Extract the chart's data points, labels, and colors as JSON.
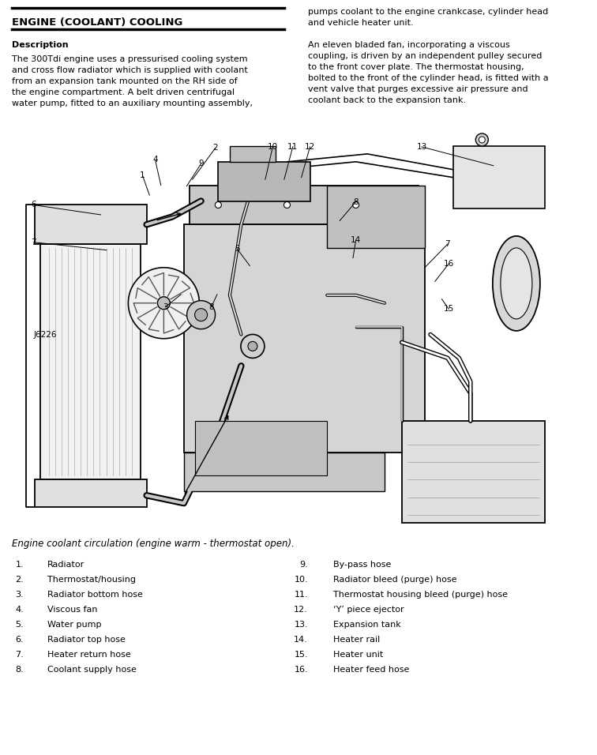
{
  "title": "ENGINE (COOLANT) COOLING",
  "description_header": "Description",
  "left_para1": "The 300Tdi engine uses a pressurised cooling system\nand cross flow radiator which is supplied with coolant\nfrom an expansion tank mounted on the RH side of\nthe engine compartment. A belt driven centrifugal\nwater pump, fitted to an auxiliary mounting assembly,",
  "right_para1": "pumps coolant to the engine crankcase, cylinder head\nand vehicle heater unit.",
  "right_para2": "An eleven bladed fan, incorporating a viscous\ncoupling, is driven by an independent pulley secured\nto the front cover plate. The thermostat housing,\nbolted to the front of the cylinder head, is fitted with a\nvent valve that purges excessive air pressure and\ncoolant back to the expansion tank.",
  "caption": "Engine coolant circulation (engine warm - thermostat open).",
  "diagram_label": "J6226",
  "left_items_nums": [
    "1.",
    "2.",
    "3.",
    "4.",
    "5.",
    "6.",
    "7.",
    "8."
  ],
  "left_items_text": [
    "Radiator",
    "Thermostat/housing",
    "Radiator bottom hose",
    "Viscous fan",
    "Water pump",
    "Radiator top hose",
    "Heater return hose",
    "Coolant supply hose"
  ],
  "right_items_nums": [
    "9.",
    "10.",
    "11.",
    "12.",
    "13.",
    "14.",
    "15.",
    "16."
  ],
  "right_items_text": [
    "By-pass hose",
    "Radiator bleed (purge) hose",
    "Thermostat housing bleed (purge) hose",
    "‘Y’ piece ejector",
    "Expansion tank",
    "Heater rail",
    "Heater unit",
    "Heater feed hose"
  ],
  "bg_color": "#ffffff",
  "text_color": "#000000",
  "title_fontsize": 9.5,
  "body_fontsize": 8.0,
  "list_fontsize": 8.0,
  "caption_fontsize": 8.5,
  "diag_label_fontsize": 7.5,
  "diag_num_fontsize": 7.5
}
